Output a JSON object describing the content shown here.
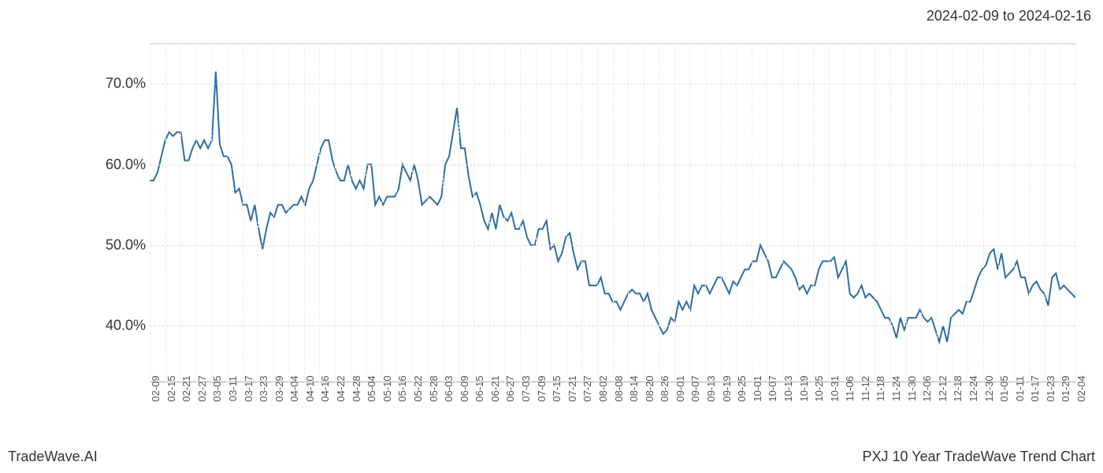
{
  "header": {
    "date_range": "2024-02-09 to 2024-02-16"
  },
  "footer": {
    "left": "TradeWave.AI",
    "right": "PXJ 10 Year TradeWave Trend Chart"
  },
  "chart": {
    "type": "line",
    "line_color": "#2e6da4",
    "line_width": 2,
    "background_color": "#ffffff",
    "grid_color": "#dddddd",
    "xgrid_color": "#eeeeee",
    "border_color": "#aaaaaa",
    "axis_font_size": 18,
    "tick_font_size": 13,
    "highlight": {
      "start_tick": "02-09",
      "end_tick": "02-16",
      "color": "#d8e5c9",
      "opacity": 0.65
    },
    "ylim": [
      33,
      75
    ],
    "y_ticks": [
      {
        "v": 40,
        "label": "40.0%"
      },
      {
        "v": 50,
        "label": "50.0%"
      },
      {
        "v": 60,
        "label": "60.0%"
      },
      {
        "v": 70,
        "label": "70.0%"
      }
    ],
    "x_ticks": [
      "02-09",
      "02-15",
      "02-21",
      "02-27",
      "03-05",
      "03-11",
      "03-17",
      "03-23",
      "03-29",
      "04-04",
      "04-10",
      "04-16",
      "04-22",
      "04-28",
      "05-04",
      "05-10",
      "05-16",
      "05-22",
      "05-28",
      "06-03",
      "06-09",
      "06-15",
      "06-21",
      "06-27",
      "07-03",
      "07-09",
      "07-15",
      "07-21",
      "07-27",
      "08-02",
      "08-08",
      "08-14",
      "08-20",
      "08-26",
      "09-01",
      "09-07",
      "09-13",
      "09-19",
      "09-25",
      "10-01",
      "10-07",
      "10-13",
      "10-19",
      "10-25",
      "10-31",
      "11-06",
      "11-12",
      "11-18",
      "11-24",
      "11-30",
      "12-06",
      "12-12",
      "12-18",
      "12-24",
      "12-30",
      "01-05",
      "01-11",
      "01-17",
      "01-23",
      "01-29",
      "02-04"
    ],
    "series": [
      58,
      58,
      59,
      61,
      63,
      64,
      63.5,
      64,
      64,
      60.5,
      60.5,
      62,
      63,
      62,
      63,
      62,
      63,
      71.5,
      62.5,
      61,
      61,
      60,
      56.5,
      57,
      55,
      55,
      53,
      55,
      52,
      49.5,
      52,
      54,
      53.5,
      55,
      55,
      54,
      54.5,
      55,
      55,
      56,
      55,
      57,
      58,
      60,
      62,
      63,
      63,
      60.5,
      59,
      58,
      58,
      60,
      58,
      57,
      58,
      57,
      60,
      60,
      55,
      56,
      55,
      56,
      56,
      56,
      57,
      60,
      59,
      58,
      60,
      58,
      55,
      55.5,
      56,
      55.5,
      55,
      56,
      60,
      61,
      64,
      67,
      62,
      62,
      58.5,
      56,
      56.5,
      55,
      53,
      52,
      54,
      52,
      55,
      53.5,
      53,
      54,
      52,
      52,
      53,
      51,
      50,
      50,
      52,
      52,
      53,
      49.5,
      50,
      48,
      49,
      51,
      51.5,
      49,
      47,
      48,
      48,
      45,
      45,
      45,
      46,
      44,
      44,
      43,
      43,
      42,
      43,
      44,
      44.5,
      44,
      44,
      43,
      44,
      42,
      41,
      40,
      39,
      39.5,
      41,
      40.5,
      43,
      42,
      43,
      42,
      45,
      44,
      45,
      45,
      44,
      45,
      46,
      46,
      45,
      44,
      45.5,
      45,
      46,
      47,
      47,
      48,
      48,
      50,
      49,
      48,
      46,
      46,
      47,
      48,
      47.5,
      47,
      46,
      44.5,
      45,
      44,
      45,
      45,
      47,
      48,
      48,
      48,
      48.5,
      46,
      47,
      48,
      44,
      43.5,
      44,
      45,
      43.5,
      44,
      43.5,
      43,
      42,
      41,
      41,
      40,
      38.5,
      41,
      39.5,
      41,
      41,
      41,
      42,
      41,
      40.5,
      41,
      39.5,
      38,
      40,
      38,
      41,
      41.5,
      42,
      41.5,
      43,
      43,
      44.5,
      46,
      47,
      47.5,
      49,
      49.5,
      47,
      49,
      46,
      46.5,
      47,
      48,
      46,
      46,
      44,
      45,
      45.5,
      44.5,
      44,
      42.5,
      46,
      46.5,
      44.5,
      45,
      44.5,
      44,
      43.5
    ]
  }
}
